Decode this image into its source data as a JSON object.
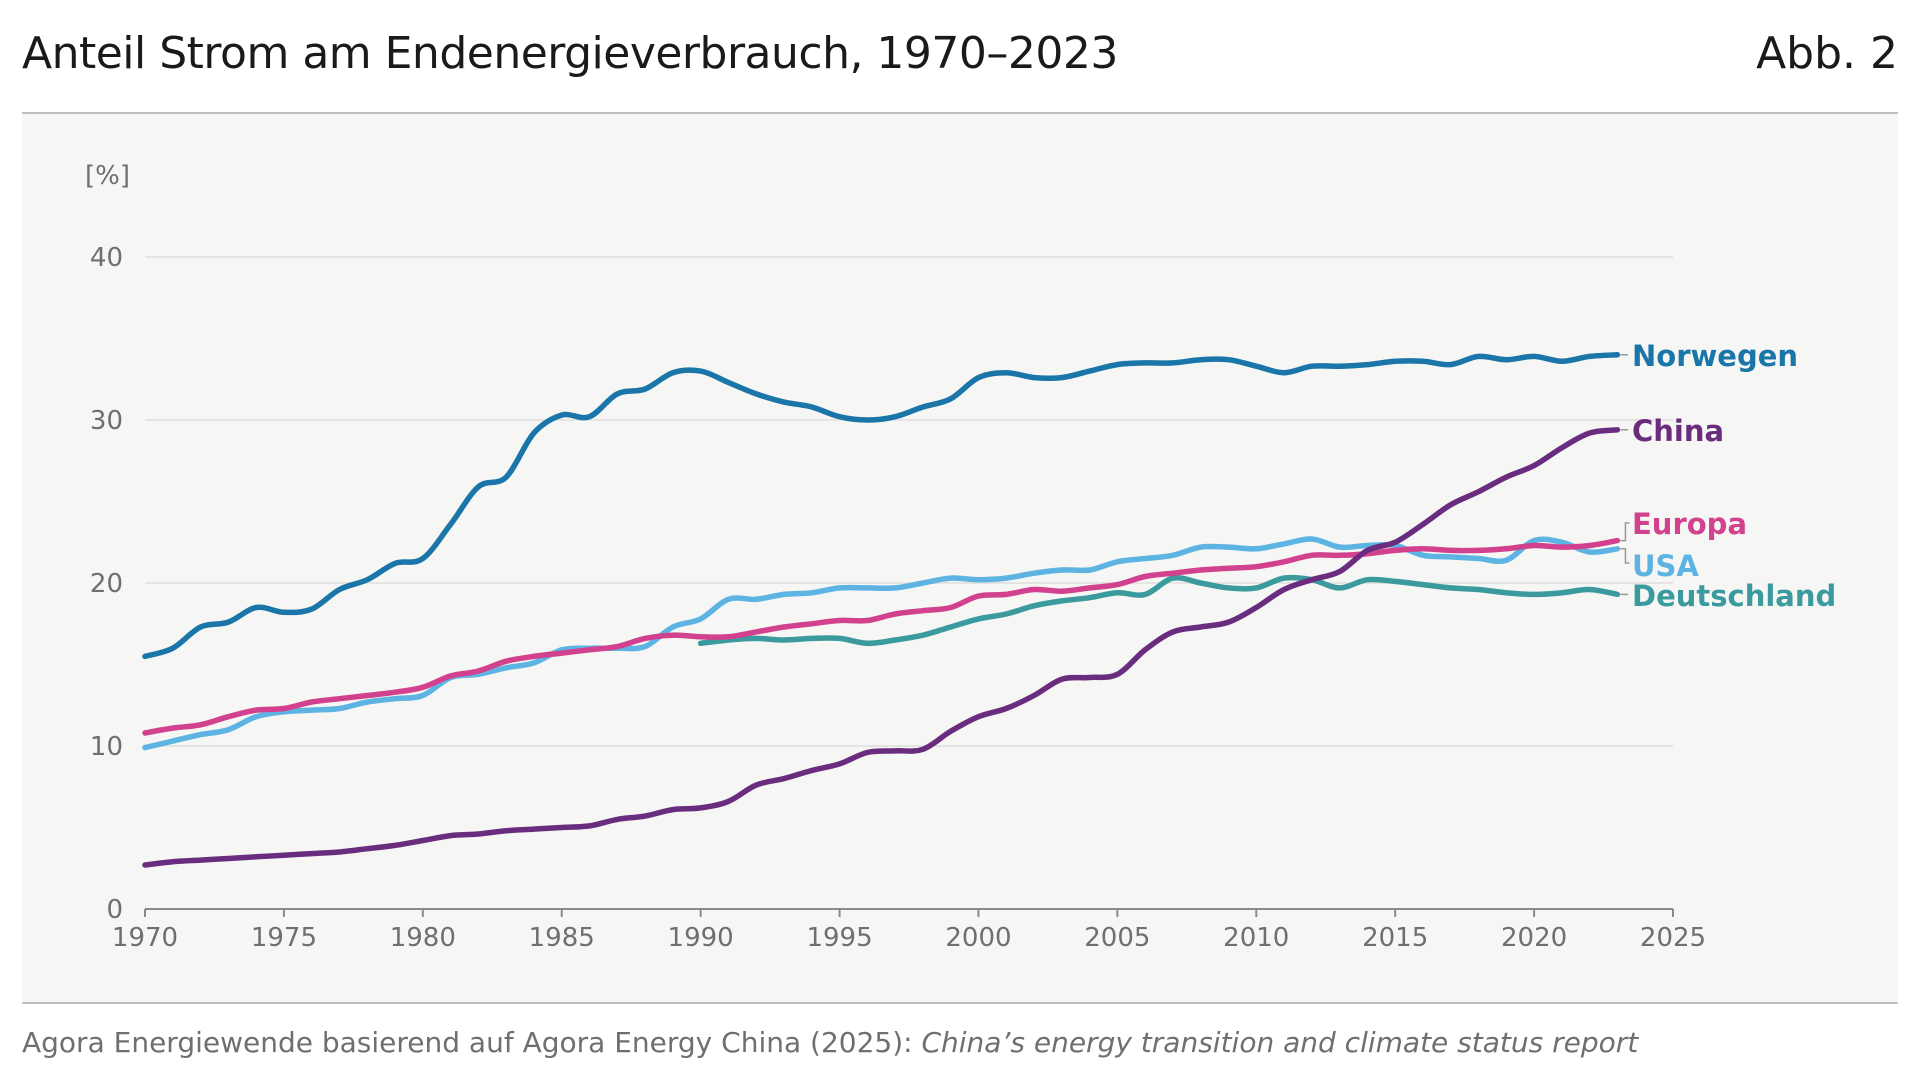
{
  "header": {
    "title": "Anteil Strom am Endenergieverbrauch, 1970–2023",
    "figure_label": "Abb. 2"
  },
  "source": {
    "text": "Agora Energiewende basierend auf Agora Energy China (2025): ",
    "italic": "China’s energy transition and climate status report"
  },
  "chart_data": {
    "type": "line",
    "title": "Anteil Strom am Endenergieverbrauch, 1970–2023",
    "ylabel": "[%]",
    "xlabel": "",
    "xlim": [
      1970,
      2025
    ],
    "ylim": [
      0,
      40
    ],
    "xticks": [
      1970,
      1975,
      1980,
      1985,
      1990,
      1995,
      2000,
      2005,
      2010,
      2015,
      2020,
      2025
    ],
    "yticks": [
      0,
      10,
      20,
      30,
      40
    ],
    "grid": "horizontal",
    "legend": "direct labels at line ends (right)",
    "series": [
      {
        "name": "Norwegen",
        "color": "#1a75a8",
        "x": [
          1970,
          1971,
          1972,
          1973,
          1974,
          1975,
          1976,
          1977,
          1978,
          1979,
          1980,
          1981,
          1982,
          1983,
          1984,
          1985,
          1986,
          1987,
          1988,
          1989,
          1990,
          1991,
          1992,
          1993,
          1994,
          1995,
          1996,
          1997,
          1998,
          1999,
          2000,
          2001,
          2002,
          2003,
          2004,
          2005,
          2006,
          2007,
          2008,
          2009,
          2010,
          2011,
          2012,
          2013,
          2014,
          2015,
          2016,
          2017,
          2018,
          2019,
          2020,
          2021,
          2022,
          2023
        ],
        "values": [
          15.5,
          16.0,
          17.3,
          17.6,
          18.5,
          18.2,
          18.4,
          19.6,
          20.2,
          21.2,
          21.5,
          23.6,
          25.9,
          26.5,
          29.2,
          30.3,
          30.2,
          31.6,
          31.9,
          32.9,
          33.0,
          32.3,
          31.6,
          31.1,
          30.8,
          30.2,
          30.0,
          30.2,
          30.8,
          31.3,
          32.6,
          32.9,
          32.6,
          32.6,
          33.0,
          33.4,
          33.5,
          33.5,
          33.7,
          33.7,
          33.3,
          32.9,
          33.3,
          33.3,
          33.4,
          33.6,
          33.6,
          33.4,
          33.9,
          33.7,
          33.9,
          33.6,
          33.9,
          34.0
        ]
      },
      {
        "name": "China",
        "color": "#6a2c7f",
        "x": [
          1970,
          1971,
          1972,
          1973,
          1974,
          1975,
          1976,
          1977,
          1978,
          1979,
          1980,
          1981,
          1982,
          1983,
          1984,
          1985,
          1986,
          1987,
          1988,
          1989,
          1990,
          1991,
          1992,
          1993,
          1994,
          1995,
          1996,
          1997,
          1998,
          1999,
          2000,
          2001,
          2002,
          2003,
          2004,
          2005,
          2006,
          2007,
          2008,
          2009,
          2010,
          2011,
          2012,
          2013,
          2014,
          2015,
          2016,
          2017,
          2018,
          2019,
          2020,
          2021,
          2022,
          2023
        ],
        "values": [
          2.7,
          2.9,
          3.0,
          3.1,
          3.2,
          3.3,
          3.4,
          3.5,
          3.7,
          3.9,
          4.2,
          4.5,
          4.6,
          4.8,
          4.9,
          5.0,
          5.1,
          5.5,
          5.7,
          6.1,
          6.2,
          6.6,
          7.6,
          8.0,
          8.5,
          8.9,
          9.6,
          9.7,
          9.8,
          10.9,
          11.8,
          12.3,
          13.1,
          14.1,
          14.2,
          14.4,
          15.9,
          17.0,
          17.3,
          17.6,
          18.5,
          19.6,
          20.2,
          20.7,
          22.0,
          22.5,
          23.6,
          24.8,
          25.6,
          26.5,
          27.2,
          28.3,
          29.2,
          29.4
        ]
      },
      {
        "name": "Europa",
        "color": "#d2418d",
        "x": [
          1970,
          1971,
          1972,
          1973,
          1974,
          1975,
          1976,
          1977,
          1978,
          1979,
          1980,
          1981,
          1982,
          1983,
          1984,
          1985,
          1986,
          1987,
          1988,
          1989,
          1990,
          1991,
          1992,
          1993,
          1994,
          1995,
          1996,
          1997,
          1998,
          1999,
          2000,
          2001,
          2002,
          2003,
          2004,
          2005,
          2006,
          2007,
          2008,
          2009,
          2010,
          2011,
          2012,
          2013,
          2014,
          2015,
          2016,
          2017,
          2018,
          2019,
          2020,
          2021,
          2022,
          2023
        ],
        "values": [
          10.8,
          11.1,
          11.3,
          11.8,
          12.2,
          12.3,
          12.7,
          12.9,
          13.1,
          13.3,
          13.6,
          14.3,
          14.6,
          15.2,
          15.5,
          15.7,
          15.9,
          16.1,
          16.6,
          16.8,
          16.7,
          16.7,
          17.0,
          17.3,
          17.5,
          17.7,
          17.7,
          18.1,
          18.3,
          18.5,
          19.2,
          19.3,
          19.6,
          19.5,
          19.7,
          19.9,
          20.4,
          20.6,
          20.8,
          20.9,
          21.0,
          21.3,
          21.7,
          21.7,
          21.8,
          22.0,
          22.1,
          22.0,
          22.0,
          22.1,
          22.3,
          22.2,
          22.3,
          22.6
        ]
      },
      {
        "name": "USA",
        "color": "#5db4e3",
        "x": [
          1970,
          1971,
          1972,
          1973,
          1974,
          1975,
          1976,
          1977,
          1978,
          1979,
          1980,
          1981,
          1982,
          1983,
          1984,
          1985,
          1986,
          1987,
          1988,
          1989,
          1990,
          1991,
          1992,
          1993,
          1994,
          1995,
          1996,
          1997,
          1998,
          1999,
          2000,
          2001,
          2002,
          2003,
          2004,
          2005,
          2006,
          2007,
          2008,
          2009,
          2010,
          2011,
          2012,
          2013,
          2014,
          2015,
          2016,
          2017,
          2018,
          2019,
          2020,
          2021,
          2022,
          2023
        ],
        "values": [
          9.9,
          10.3,
          10.7,
          11.0,
          11.8,
          12.1,
          12.2,
          12.3,
          12.7,
          12.9,
          13.1,
          14.2,
          14.4,
          14.8,
          15.1,
          15.9,
          16.0,
          16.0,
          16.1,
          17.3,
          17.8,
          19.0,
          19.0,
          19.3,
          19.4,
          19.7,
          19.7,
          19.7,
          20.0,
          20.3,
          20.2,
          20.3,
          20.6,
          20.8,
          20.8,
          21.3,
          21.5,
          21.7,
          22.2,
          22.2,
          22.1,
          22.4,
          22.7,
          22.2,
          22.3,
          22.3,
          21.7,
          21.6,
          21.5,
          21.4,
          22.6,
          22.5,
          21.9,
          22.1
        ]
      },
      {
        "name": "Deutschland",
        "color": "#3a9a9e",
        "x": [
          1990,
          1991,
          1992,
          1993,
          1994,
          1995,
          1996,
          1997,
          1998,
          1999,
          2000,
          2001,
          2002,
          2003,
          2004,
          2005,
          2006,
          2007,
          2008,
          2009,
          2010,
          2011,
          2012,
          2013,
          2014,
          2015,
          2016,
          2017,
          2018,
          2019,
          2020,
          2021,
          2022,
          2023
        ],
        "values": [
          16.3,
          16.5,
          16.6,
          16.5,
          16.6,
          16.6,
          16.3,
          16.5,
          16.8,
          17.3,
          17.8,
          18.1,
          18.6,
          18.9,
          19.1,
          19.4,
          19.3,
          20.3,
          20.0,
          19.7,
          19.7,
          20.3,
          20.2,
          19.7,
          20.2,
          20.1,
          19.9,
          19.7,
          19.6,
          19.4,
          19.3,
          19.4,
          19.6,
          19.3
        ]
      }
    ]
  }
}
